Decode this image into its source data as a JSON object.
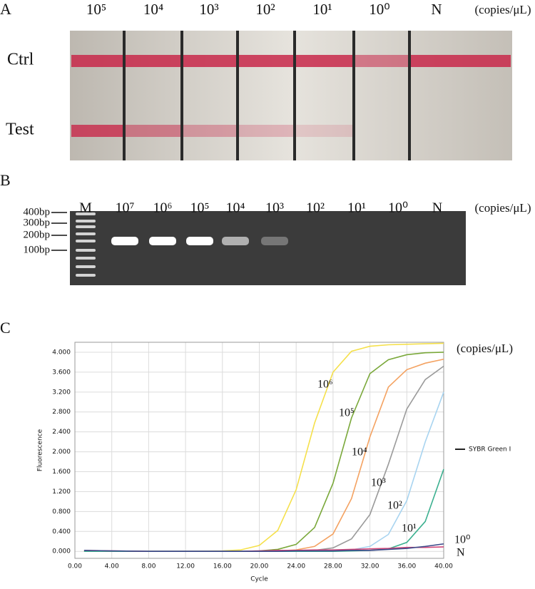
{
  "panel_a": {
    "label": "A",
    "columns": [
      "10⁵",
      "10⁴",
      "10³",
      "10²",
      "10¹",
      "10⁰",
      "N"
    ],
    "unit": "(copies/μL)",
    "rows": [
      "Ctrl",
      "Test"
    ]
  },
  "panel_b": {
    "label": "B",
    "lanes": [
      "M",
      "10⁷",
      "10⁶",
      "10⁵",
      "10⁴",
      "10³",
      "10²",
      "10¹",
      "10⁰",
      "N"
    ],
    "unit": "(copies/μL)",
    "ladder": [
      "400bp",
      "300bp",
      "200bp",
      "100bp"
    ]
  },
  "chart_data": {
    "type": "line",
    "panel_label": "C",
    "x_label": "Cycle",
    "y_label": "Fluorescence",
    "unit_annotation": "(copies/μL)",
    "legend_label": "SYBR Green I",
    "legend_color": "#222222",
    "x": [
      1,
      4,
      8,
      12,
      16,
      18,
      20,
      22,
      24,
      26,
      28,
      30,
      32,
      34,
      36,
      38,
      40
    ],
    "series": [
      {
        "name": "10⁶",
        "color": "#f5e04a",
        "values": [
          0,
          0,
          0,
          0,
          0.01,
          0.03,
          0.12,
          0.42,
          1.24,
          2.58,
          3.6,
          4.02,
          4.12,
          4.15,
          4.16,
          4.17,
          4.18
        ]
      },
      {
        "name": "10⁵",
        "color": "#7aa83a",
        "values": [
          0,
          0,
          0,
          0,
          0,
          0,
          0.01,
          0.04,
          0.14,
          0.48,
          1.37,
          2.68,
          3.57,
          3.85,
          3.95,
          3.99,
          4.0
        ]
      },
      {
        "name": "10⁴",
        "color": "#f4a261",
        "values": [
          0,
          0,
          0,
          0,
          0,
          0,
          0,
          0.01,
          0.03,
          0.1,
          0.35,
          1.06,
          2.3,
          3.3,
          3.65,
          3.78,
          3.86
        ]
      },
      {
        "name": "10³",
        "color": "#9a9a9a",
        "values": [
          0,
          0,
          0,
          0,
          0,
          0,
          0,
          0,
          0.01,
          0.02,
          0.07,
          0.25,
          0.74,
          1.75,
          2.86,
          3.45,
          3.72
        ]
      },
      {
        "name": "10²",
        "color": "#a8d4f0",
        "values": [
          0,
          0,
          0,
          0,
          0,
          0,
          0,
          0,
          0,
          0.01,
          0.01,
          0.03,
          0.1,
          0.34,
          1.02,
          2.2,
          3.2
        ]
      },
      {
        "name": "10¹",
        "color": "#3bb08f",
        "values": [
          0,
          0,
          0,
          0,
          0,
          0,
          0,
          0,
          0,
          0,
          0,
          0.01,
          0.02,
          0.05,
          0.18,
          0.6,
          1.65
        ]
      },
      {
        "name": "10⁰",
        "color": "#d0487a",
        "values": [
          0.02,
          0.01,
          0,
          0,
          0,
          0,
          0.01,
          0.02,
          0.02,
          0.03,
          0.03,
          0.04,
          0.05,
          0.06,
          0.08,
          0.08,
          0.09
        ]
      },
      {
        "name": "N",
        "color": "#3a4a8a",
        "values": [
          0.02,
          0.01,
          0,
          0,
          0,
          0,
          0,
          0,
          0.01,
          0.01,
          0.01,
          0.02,
          0.02,
          0.04,
          0.06,
          0.1,
          0.15
        ]
      }
    ],
    "xlim": [
      0,
      40
    ],
    "xticks": [
      {
        "value": 0,
        "label": "0.00"
      },
      {
        "value": 4,
        "label": "4.00"
      },
      {
        "value": 8,
        "label": "8.00"
      },
      {
        "value": 12,
        "label": "12.00"
      },
      {
        "value": 16,
        "label": "16.00"
      },
      {
        "value": 20,
        "label": "20.00"
      },
      {
        "value": 24,
        "label": "24.00"
      },
      {
        "value": 28,
        "label": "28.00"
      },
      {
        "value": 32,
        "label": "32.00"
      },
      {
        "value": 36,
        "label": "36.00"
      },
      {
        "value": 40,
        "label": "40.00"
      }
    ],
    "ylim": [
      -0.14,
      4.2
    ],
    "yticks": [
      {
        "value": 0,
        "label": "0.000"
      },
      {
        "value": 0.4,
        "label": "0.400"
      },
      {
        "value": 0.8,
        "label": "0.800"
      },
      {
        "value": 1.2,
        "label": "1.200"
      },
      {
        "value": 1.6,
        "label": "1.600"
      },
      {
        "value": 2,
        "label": "2.000"
      },
      {
        "value": 2.4,
        "label": "2.400"
      },
      {
        "value": 2.8,
        "label": "2.800"
      },
      {
        "value": 3.2,
        "label": "3.200"
      },
      {
        "value": 3.6,
        "label": "3.600"
      },
      {
        "value": 4,
        "label": "4.000"
      }
    ],
    "grid": true
  }
}
